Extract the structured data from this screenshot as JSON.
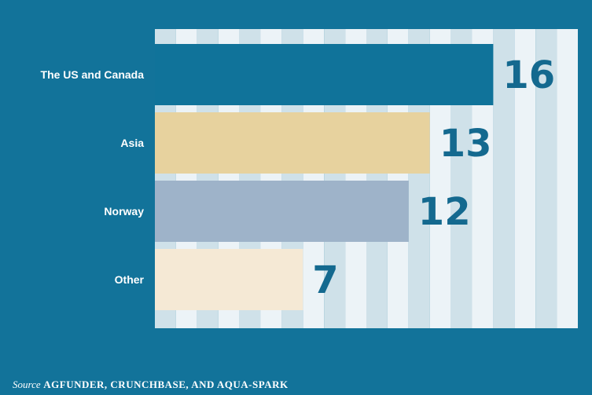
{
  "chart_data": {
    "type": "bar",
    "orientation": "horizontal",
    "categories": [
      "The US and Canada",
      "Asia",
      "Norway",
      "Other"
    ],
    "values": [
      16,
      13,
      12,
      7
    ],
    "xlim": [
      0,
      20
    ],
    "grid": true,
    "title": "",
    "xlabel": "",
    "ylabel": ""
  },
  "colors": {
    "background": "#12739a",
    "bars": [
      "#10739a",
      "#e7d29e",
      "#9eb3c9",
      "#f5e9d5"
    ],
    "value_label": "#14698f",
    "grid_stripe_light": "#ecf3f7",
    "grid_stripe_dark": "#cfe1e9"
  },
  "source": {
    "prefix": "Source",
    "text": "AGFUNDER, CRUNCHBASE, AND AQUA-SPARK"
  }
}
